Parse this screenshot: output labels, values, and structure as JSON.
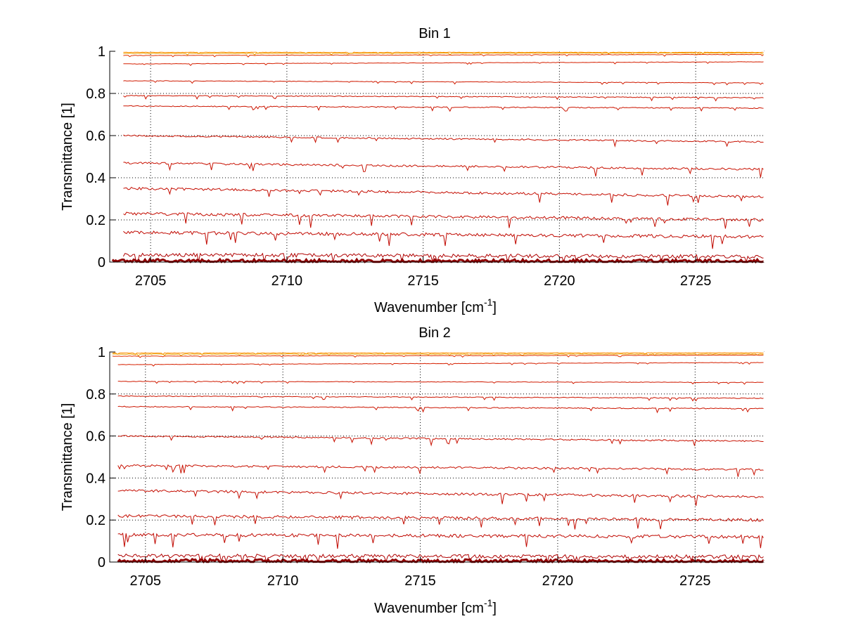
{
  "figure": {
    "background": "#ffffff"
  },
  "chart_data": [
    {
      "type": "line",
      "title": "Bin 1",
      "xlabel": "Wavenumber [cm",
      "xlabel_sup": "-1",
      "xlabel_close": "]",
      "ylabel": "Transmittance [1]",
      "xlim": [
        2703.5,
        2727.5
      ],
      "ylim": [
        0,
        1
      ],
      "xticks": [
        2705,
        2710,
        2715,
        2720,
        2725
      ],
      "yticks": [
        0,
        0.2,
        0.4,
        0.6,
        0.8,
        1
      ],
      "ytick_labels": [
        "0",
        "0.2",
        "0.4",
        "0.6",
        "0.8",
        "1"
      ],
      "grid": true,
      "series": [
        {
          "color": "#ff8c00",
          "values_start": 0.995,
          "values_end": 0.995,
          "x_start": 2704.0
        },
        {
          "color": "#e7a400",
          "values_start": 0.99,
          "values_end": 0.992,
          "x_start": 2704.0
        },
        {
          "color": "#e03000",
          "values_start": 0.98,
          "values_end": 0.985,
          "x_start": 2704.0
        },
        {
          "color": "#d62000",
          "values_start": 0.94,
          "values_end": 0.95,
          "x_start": 2704.0
        },
        {
          "color": "#d01a00",
          "values_start": 0.86,
          "values_end": 0.85,
          "x_start": 2704.0
        },
        {
          "color": "#cc1500",
          "values_start": 0.79,
          "values_end": 0.78,
          "x_start": 2704.0
        },
        {
          "color": "#cc1500",
          "values_start": 0.74,
          "values_end": 0.73,
          "x_start": 2704.0
        },
        {
          "color": "#c81000",
          "values_start": 0.6,
          "values_end": 0.57,
          "x_start": 2704.0
        },
        {
          "color": "#c81000",
          "values_start": 0.47,
          "values_end": 0.44,
          "x_start": 2704.0
        },
        {
          "color": "#c40c00",
          "values_start": 0.35,
          "values_end": 0.31,
          "x_start": 2704.0
        },
        {
          "color": "#c40c00",
          "values_start": 0.23,
          "values_end": 0.2,
          "x_start": 2704.0
        },
        {
          "color": "#c00800",
          "values_start": 0.14,
          "values_end": 0.12,
          "x_start": 2704.0
        },
        {
          "color": "#b00000",
          "values_start": 0.035,
          "values_end": 0.025,
          "x_start": 2704.0
        },
        {
          "color": "#900000",
          "values_start": 0.005,
          "values_end": 0.003,
          "x_start": 2703.6
        }
      ]
    },
    {
      "type": "line",
      "title": "Bin 2",
      "xlabel": "Wavenumber [cm",
      "xlabel_sup": "-1",
      "xlabel_close": "]",
      "ylabel": "Transmittance [1]",
      "xlim": [
        2703.7,
        2727.5
      ],
      "ylim": [
        0,
        1
      ],
      "xticks": [
        2705,
        2710,
        2715,
        2720,
        2725
      ],
      "yticks": [
        0,
        0.2,
        0.4,
        0.6,
        0.8,
        1
      ],
      "ytick_labels": [
        "0",
        "0.2",
        "0.4",
        "0.6",
        "0.8",
        "1"
      ],
      "grid": true,
      "series": [
        {
          "color": "#ff8c00",
          "values_start": 0.995,
          "values_end": 0.996,
          "x_start": 2703.8
        },
        {
          "color": "#e7a400",
          "values_start": 0.99,
          "values_end": 0.99,
          "x_start": 2703.8
        },
        {
          "color": "#e03000",
          "values_start": 0.98,
          "values_end": 0.985,
          "x_start": 2703.8
        },
        {
          "color": "#d62000",
          "values_start": 0.94,
          "values_end": 0.95,
          "x_start": 2704.0
        },
        {
          "color": "#d01a00",
          "values_start": 0.86,
          "values_end": 0.855,
          "x_start": 2704.0
        },
        {
          "color": "#cc1500",
          "values_start": 0.79,
          "values_end": 0.78,
          "x_start": 2704.0
        },
        {
          "color": "#cc1500",
          "values_start": 0.74,
          "values_end": 0.73,
          "x_start": 2704.0
        },
        {
          "color": "#c81000",
          "values_start": 0.6,
          "values_end": 0.575,
          "x_start": 2704.0
        },
        {
          "color": "#c81000",
          "values_start": 0.46,
          "values_end": 0.44,
          "x_start": 2704.0
        },
        {
          "color": "#c40c00",
          "values_start": 0.34,
          "values_end": 0.31,
          "x_start": 2704.0
        },
        {
          "color": "#c40c00",
          "values_start": 0.22,
          "values_end": 0.2,
          "x_start": 2704.0
        },
        {
          "color": "#c00800",
          "values_start": 0.13,
          "values_end": 0.12,
          "x_start": 2704.0
        },
        {
          "color": "#b00000",
          "values_start": 0.03,
          "values_end": 0.025,
          "x_start": 2704.0
        },
        {
          "color": "#900000",
          "values_start": 0.005,
          "values_end": 0.003,
          "x_start": 2704.0
        }
      ]
    }
  ]
}
